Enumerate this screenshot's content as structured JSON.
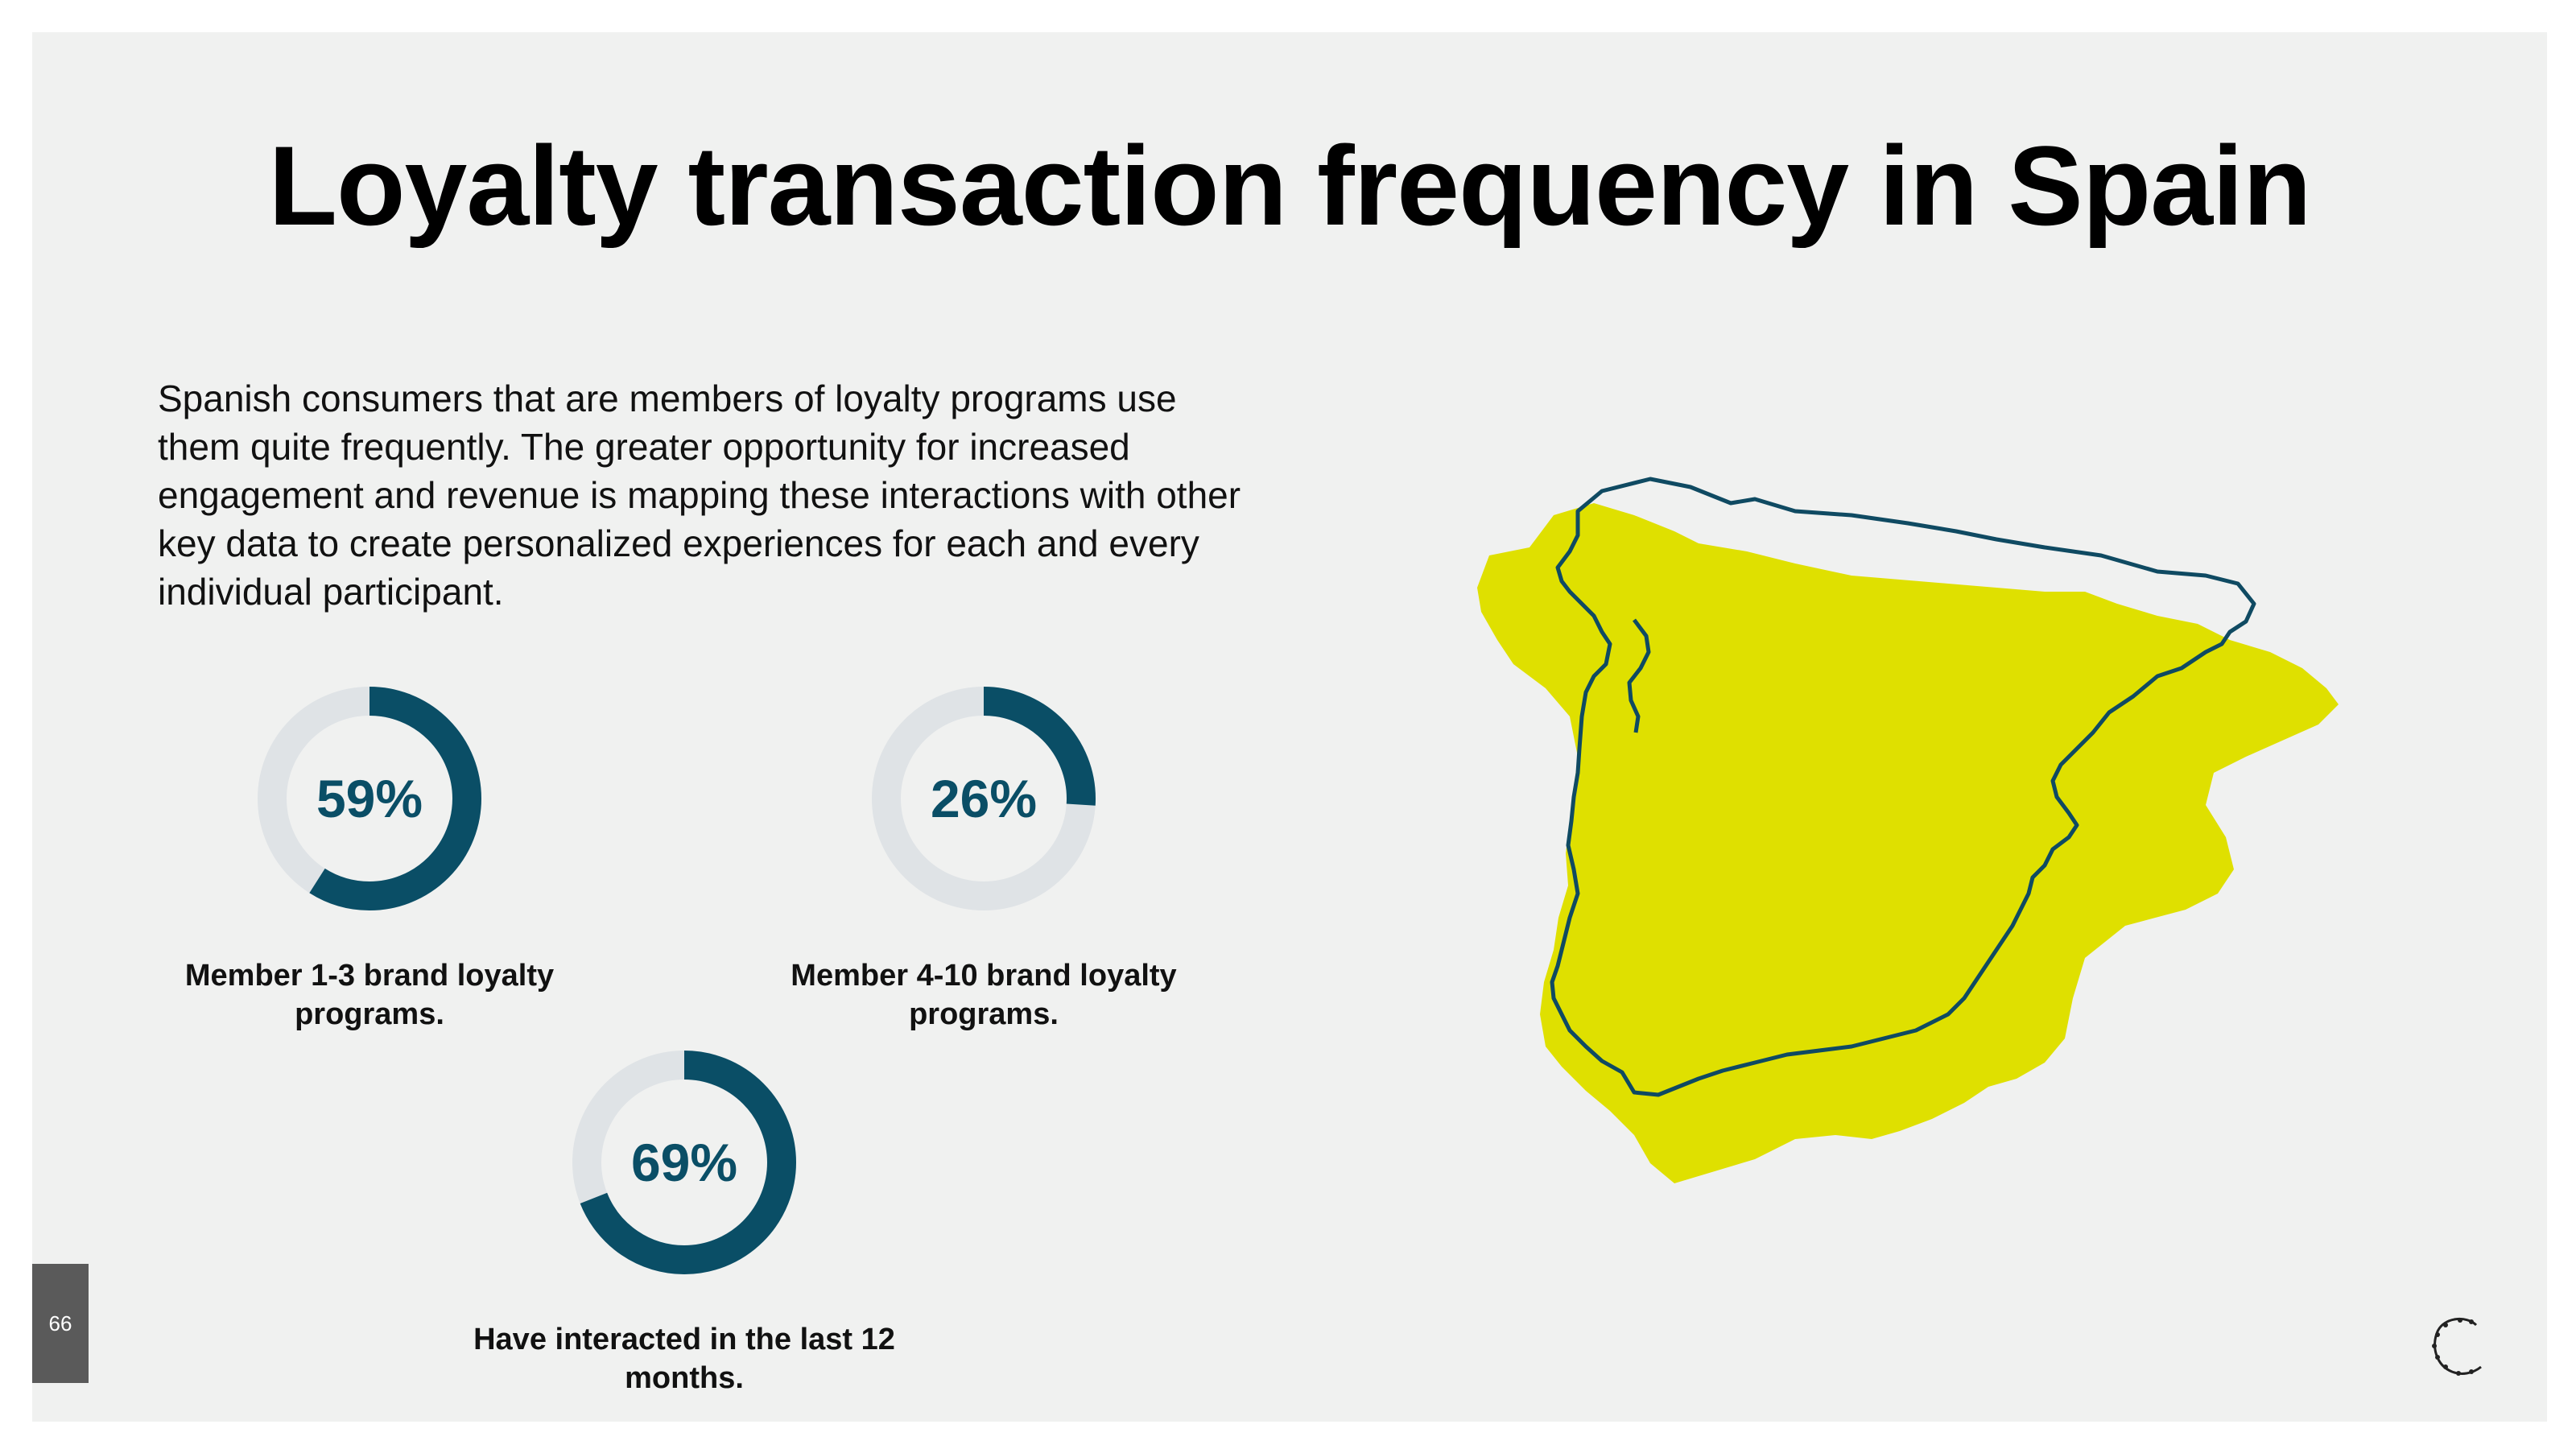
{
  "slide": {
    "title": "Loyalty transaction frequency in Spain",
    "description": "Spanish consumers that are members of loyalty programs use them quite frequently. The greater opportunity for increased engagement and revenue is mapping these interactions with other key data to create personalized experiences for each and every individual participant.",
    "page_number": "66"
  },
  "stats": [
    {
      "value": 59,
      "label": "59%",
      "caption": "Member 1-3 brand loyalty programs."
    },
    {
      "value": 26,
      "label": "26%",
      "caption": "Member 4-10 brand loyalty programs."
    },
    {
      "value": 69,
      "label": "69%",
      "caption": "Have interacted in the last 12 months."
    }
  ],
  "colors": {
    "ring_fill": "#0a4e66",
    "ring_track": "#dfe3e6",
    "map_fill": "#dfe000",
    "map_outline": "#0f4a62",
    "background": "#f0f1f0"
  },
  "icons": {
    "logo": "wreath-c-logo",
    "map": "spain-map"
  }
}
